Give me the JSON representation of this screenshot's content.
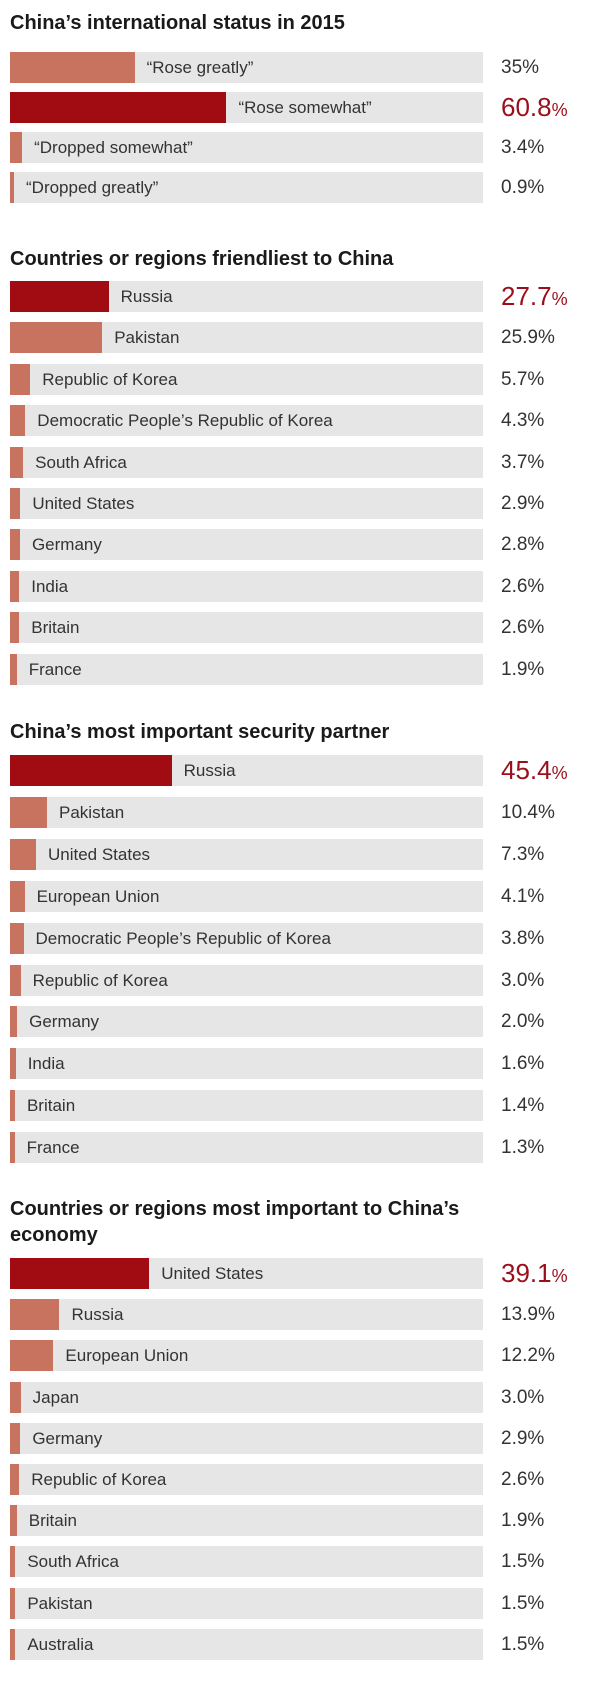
{
  "colors": {
    "highlight": "#a10c13",
    "normal": "#c87360",
    "track": "#e6e6e6",
    "lead_text": "#9b0e1a"
  },
  "chart_data": [
    {
      "type": "bar",
      "title": "China’s international status in 2015",
      "categories": [
        "“Rose greatly”",
        "“Rose somewhat”",
        "“Dropped somewhat”",
        "“Dropped greatly”"
      ],
      "values": [
        35,
        60.8,
        3.4,
        0.9
      ],
      "value_labels": [
        "35%",
        "60.8",
        "3.4%",
        "0.9%"
      ],
      "unit": "%",
      "xlim": [
        0,
        100
      ],
      "highlight_index": 1
    },
    {
      "type": "bar",
      "title": "Countries or regions friendliest to China",
      "categories": [
        "Russia",
        "Pakistan",
        "Republic of Korea",
        "Democratic People’s Republic of Korea",
        "South Africa",
        "United States",
        "Germany",
        "India",
        "Britain",
        "France"
      ],
      "values": [
        27.7,
        25.9,
        5.7,
        4.3,
        3.7,
        2.9,
        2.8,
        2.6,
        2.6,
        1.9
      ],
      "value_labels": [
        "27.7",
        "25.9%",
        "5.7%",
        "4.3%",
        "3.7%",
        "2.9%",
        "2.8%",
        "2.6%",
        "2.6%",
        "1.9%"
      ],
      "unit": "%",
      "xlim": [
        0,
        100
      ],
      "highlight_index": 0
    },
    {
      "type": "bar",
      "title": "China’s most important security partner",
      "categories": [
        "Russia",
        "Pakistan",
        "United States",
        "European Union",
        "Democratic People’s Republic of Korea",
        "Republic of Korea",
        "Germany",
        "India",
        "Britain",
        "France"
      ],
      "values": [
        45.4,
        10.4,
        7.3,
        4.1,
        3.8,
        3.0,
        2.0,
        1.6,
        1.4,
        1.3
      ],
      "value_labels": [
        "45.4",
        "10.4%",
        "7.3%",
        "4.1%",
        "3.8%",
        "3.0%",
        "2.0%",
        "1.6%",
        "1.4%",
        "1.3%"
      ],
      "unit": "%",
      "xlim": [
        0,
        100
      ],
      "highlight_index": 0
    },
    {
      "type": "bar",
      "title": "Countries or regions most important to China’s economy",
      "categories": [
        "United States",
        "Russia",
        "European Union",
        "Japan",
        "Germany",
        "Republic of Korea",
        "Britain",
        "South Africa",
        "Pakistan",
        "Australia"
      ],
      "values": [
        39.1,
        13.9,
        12.2,
        3.0,
        2.9,
        2.6,
        1.9,
        1.5,
        1.5,
        1.5
      ],
      "value_labels": [
        "39.1",
        "13.9%",
        "12.2%",
        "3.0%",
        "2.9%",
        "2.6%",
        "1.9%",
        "1.5%",
        "1.5%",
        "1.5%"
      ],
      "unit": "%",
      "xlim": [
        0,
        100
      ],
      "highlight_index": 0
    }
  ]
}
